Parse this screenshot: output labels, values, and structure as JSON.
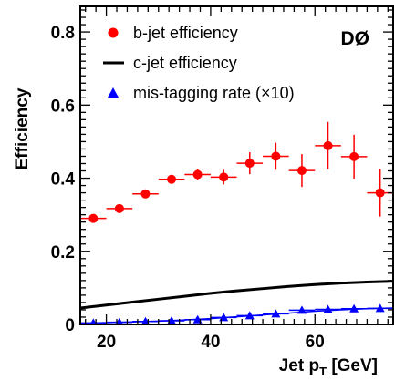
{
  "chart_data": {
    "type": "scatter",
    "x_axis": {
      "label_main": "Jet p",
      "label_sub": "T",
      "label_unit": " [GeV]",
      "range": [
        15,
        75
      ],
      "major_ticks": [
        20,
        40,
        60
      ],
      "tick_labels": [
        "20",
        "40",
        "60"
      ],
      "minor_step": 2
    },
    "y_axis": {
      "label": "Efficiency",
      "range": [
        0,
        0.87
      ],
      "major_ticks": [
        0,
        0.2,
        0.4,
        0.6,
        0.8
      ],
      "tick_labels": [
        "0",
        "0.2",
        "0.4",
        "0.6",
        "0.8"
      ],
      "minor_step": 0.02
    },
    "grid": false,
    "legend_position": "top-left",
    "annotation": "DØ",
    "series": [
      {
        "name": "b-jet efficiency",
        "kind": "points",
        "marker": "circle",
        "color": "#ff0000",
        "x": [
          17.5,
          22.5,
          27.5,
          32.5,
          37.5,
          42.5,
          47.5,
          52.5,
          57.5,
          62.5,
          67.5,
          72.5
        ],
        "x_err": 2.5,
        "y": [
          0.29,
          0.317,
          0.357,
          0.397,
          0.41,
          0.403,
          0.441,
          0.46,
          0.421,
          0.489,
          0.459,
          0.36
        ],
        "y_err": [
          0.007,
          0.006,
          0.008,
          0.01,
          0.015,
          0.02,
          0.03,
          0.037,
          0.045,
          0.065,
          0.06,
          0.065
        ]
      },
      {
        "name": "c-jet efficiency",
        "kind": "line",
        "color": "#000000",
        "x": [
          15,
          20,
          25,
          30,
          35,
          40,
          45,
          50,
          55,
          60,
          65,
          70,
          75
        ],
        "y": [
          0.045,
          0.053,
          0.061,
          0.069,
          0.077,
          0.085,
          0.092,
          0.098,
          0.104,
          0.109,
          0.113,
          0.116,
          0.118
        ]
      },
      {
        "name": "mis-tagging rate (×10)",
        "kind": "points",
        "marker": "triangle",
        "color": "#0000ff",
        "x": [
          17.5,
          22.5,
          27.5,
          32.5,
          37.5,
          42.5,
          47.5,
          52.5,
          57.5,
          62.5,
          67.5,
          72.5
        ],
        "x_err": 2.5,
        "y": [
          0.004,
          0.006,
          0.008,
          0.01,
          0.013,
          0.019,
          0.024,
          0.029,
          0.039,
          0.041,
          0.043,
          0.044
        ],
        "y_err": [
          0.001,
          0.001,
          0.001,
          0.001,
          0.002,
          0.002,
          0.002,
          0.002,
          0.002,
          0.003,
          0.003,
          0.003
        ],
        "fit_line": {
          "x": [
            15,
            20,
            25,
            30,
            35,
            40,
            45,
            50,
            55,
            60,
            65,
            70,
            75
          ],
          "y": [
            0.003,
            0.005,
            0.007,
            0.009,
            0.012,
            0.016,
            0.021,
            0.026,
            0.031,
            0.036,
            0.04,
            0.043,
            0.045
          ]
        }
      }
    ]
  }
}
